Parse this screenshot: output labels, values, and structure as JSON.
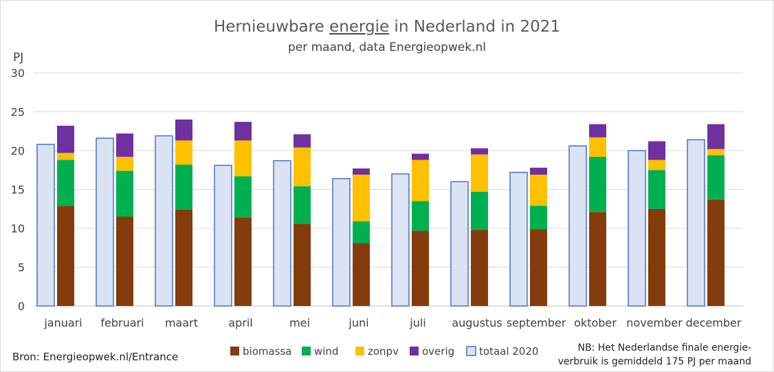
{
  "chart_data": {
    "type": "bar",
    "title_parts": [
      "Hernieuwbare ",
      "energie",
      " in Nederland in 2021"
    ],
    "subtitle": "per maand, data Energieopwek.nl",
    "ylabel": "PJ",
    "ylim": [
      0,
      30
    ],
    "yticks": [
      0,
      5,
      10,
      15,
      20,
      25,
      30
    ],
    "grid": true,
    "legend_position": "bottom",
    "categories": [
      "januari",
      "februari",
      "maart",
      "april",
      "mei",
      "juni",
      "juli",
      "augustus",
      "september",
      "oktober",
      "november",
      "december"
    ],
    "series": [
      {
        "name": "totaal 2020",
        "kind": "reference",
        "color": "#dae3f3",
        "edge": "#4472c4",
        "values": [
          20.8,
          21.6,
          21.9,
          18.1,
          18.7,
          16.4,
          17.0,
          16.0,
          17.2,
          20.6,
          20.0,
          21.4
        ]
      },
      {
        "name": "biomassa",
        "kind": "stack",
        "color": "#843c0c",
        "values": [
          12.9,
          11.5,
          12.4,
          11.4,
          10.6,
          8.1,
          9.7,
          9.8,
          9.9,
          12.1,
          12.5,
          13.7
        ]
      },
      {
        "name": "wind",
        "kind": "stack",
        "color": "#00b050",
        "values": [
          5.9,
          5.9,
          5.8,
          5.3,
          4.8,
          2.8,
          3.8,
          4.9,
          3.0,
          7.1,
          5.0,
          5.7
        ]
      },
      {
        "name": "zonpv",
        "kind": "stack",
        "color": "#ffc000",
        "values": [
          0.9,
          1.8,
          3.1,
          4.6,
          5.0,
          6.0,
          5.3,
          4.8,
          4.0,
          2.5,
          1.3,
          0.8
        ]
      },
      {
        "name": "overig",
        "kind": "stack",
        "color": "#7030a0",
        "values": [
          3.5,
          3.0,
          2.7,
          2.4,
          1.7,
          0.8,
          0.8,
          0.8,
          0.9,
          1.7,
          2.4,
          3.2
        ]
      }
    ],
    "legend_order": [
      "biomassa",
      "wind",
      "zonpv",
      "overig",
      "totaal 2020"
    ],
    "source": "Bron: Energieopwek.nl/Entrance",
    "note_lines": [
      "NB: Het Nederlandse finale energie-",
      "verbruik is gemiddeld 175 PJ per maand"
    ]
  }
}
